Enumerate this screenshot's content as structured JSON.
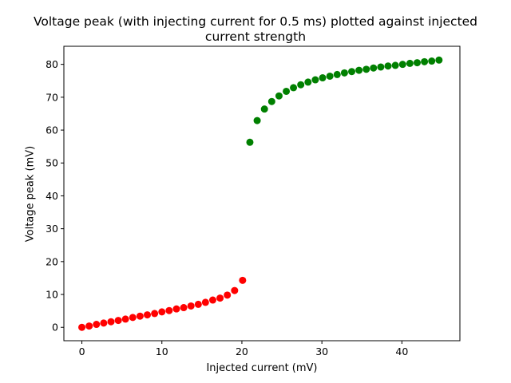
{
  "chart_data": {
    "type": "scatter",
    "title_line1": "Voltage peak (with injecting current for 0.5 ms) plotted against injected",
    "title_line2": "current strength",
    "xlabel": "Injected current (mV)",
    "ylabel": "Voltage peak (mV)",
    "xlim": [
      -2.25,
      47.25
    ],
    "ylim": [
      -4.07,
      85.5
    ],
    "xticks": [
      0,
      10,
      20,
      30,
      40
    ],
    "yticks": [
      0,
      10,
      20,
      30,
      40,
      50,
      60,
      70,
      80
    ],
    "grid": false,
    "legend": "none",
    "series": [
      {
        "color": "#ff0000",
        "x": [
          0,
          0.91,
          1.82,
          2.73,
          3.64,
          4.55,
          5.45,
          6.36,
          7.27,
          8.18,
          9.09,
          10.0,
          10.91,
          11.82,
          12.73,
          13.64,
          14.55,
          15.45,
          16.36,
          17.27,
          18.18,
          19.09,
          20.09
        ],
        "y": [
          0.0,
          0.4,
          0.9,
          1.3,
          1.7,
          2.1,
          2.5,
          3.0,
          3.4,
          3.8,
          4.2,
          4.7,
          5.1,
          5.6,
          6.0,
          6.5,
          7.0,
          7.6,
          8.3,
          8.9,
          9.8,
          11.2,
          14.3
        ]
      },
      {
        "color": "#008000",
        "x": [
          21.0,
          21.91,
          22.82,
          23.73,
          24.64,
          25.55,
          26.45,
          27.36,
          28.27,
          29.18,
          30.09,
          31.0,
          31.91,
          32.82,
          33.73,
          34.64,
          35.55,
          36.45,
          37.36,
          38.27,
          39.18,
          40.09,
          41.0,
          41.91,
          42.82,
          43.73,
          44.64
        ],
        "y": [
          56.3,
          62.9,
          66.4,
          68.7,
          70.4,
          71.8,
          72.9,
          73.8,
          74.6,
          75.3,
          75.9,
          76.4,
          76.9,
          77.4,
          77.8,
          78.2,
          78.5,
          78.9,
          79.2,
          79.5,
          79.7,
          80.0,
          80.3,
          80.5,
          80.8,
          81.0,
          81.3
        ]
      }
    ]
  }
}
